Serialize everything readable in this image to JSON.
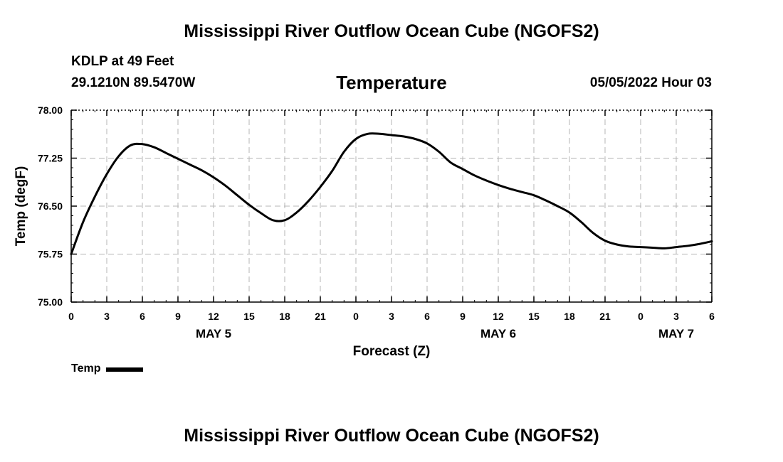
{
  "header": {
    "title": "Mississippi River Outflow Ocean Cube (NGOFS2)",
    "station": "KDLP at 49 Feet",
    "coordinates": "29.1210N  89.5470W",
    "variable": "Temperature",
    "datetime": "05/05/2022 Hour 03"
  },
  "footer": {
    "title": "Mississippi River Outflow Ocean Cube (NGOFS2)"
  },
  "legend": {
    "label": "Temp",
    "color": "#000000"
  },
  "chart_data": {
    "type": "line",
    "title": "Temperature",
    "xlabel": "Forecast (Z)",
    "ylabel": "Temp (degF)",
    "xlim": [
      0,
      54
    ],
    "ylim": [
      75.0,
      78.0
    ],
    "grid": true,
    "legend_position": "bottom-left",
    "x_ticks": [
      0,
      3,
      6,
      9,
      12,
      15,
      18,
      21,
      24,
      27,
      30,
      33,
      36,
      39,
      42,
      45,
      48,
      51,
      54
    ],
    "x_tick_labels": [
      "0",
      "3",
      "6",
      "9",
      "12",
      "15",
      "18",
      "21",
      "0",
      "3",
      "6",
      "9",
      "12",
      "15",
      "18",
      "21",
      "0",
      "3",
      "6"
    ],
    "y_ticks": [
      75.0,
      75.75,
      76.5,
      77.25,
      78.0
    ],
    "y_tick_labels": [
      "75.00",
      "75.75",
      "76.50",
      "77.25",
      "78.00"
    ],
    "day_labels": [
      {
        "text": "MAY 5",
        "x": 12
      },
      {
        "text": "MAY 6",
        "x": 36
      },
      {
        "text": "MAY 7",
        "x": 51
      }
    ],
    "series": [
      {
        "name": "Temp",
        "color": "#000000",
        "x": [
          0,
          1,
          2,
          3,
          4,
          5,
          6,
          7,
          8,
          9,
          10,
          11,
          12,
          13,
          14,
          15,
          16,
          17,
          18,
          19,
          20,
          21,
          22,
          23,
          24,
          25,
          26,
          27,
          28,
          29,
          30,
          31,
          32,
          33,
          34,
          35,
          36,
          37,
          38,
          39,
          40,
          41,
          42,
          43,
          44,
          45,
          46,
          47,
          48,
          49,
          50,
          51,
          52,
          53,
          54
        ],
        "values": [
          75.75,
          76.25,
          76.65,
          77.0,
          77.28,
          77.45,
          77.47,
          77.42,
          77.33,
          77.24,
          77.15,
          77.06,
          76.95,
          76.82,
          76.67,
          76.52,
          76.39,
          76.28,
          76.28,
          76.4,
          76.58,
          76.8,
          77.05,
          77.35,
          77.55,
          77.63,
          77.63,
          77.61,
          77.59,
          77.55,
          77.48,
          77.35,
          77.18,
          77.08,
          76.98,
          76.9,
          76.83,
          76.77,
          76.72,
          76.67,
          76.59,
          76.5,
          76.4,
          76.25,
          76.08,
          75.96,
          75.9,
          75.87,
          75.86,
          75.85,
          75.84,
          75.86,
          75.88,
          75.91,
          75.95
        ]
      }
    ]
  }
}
